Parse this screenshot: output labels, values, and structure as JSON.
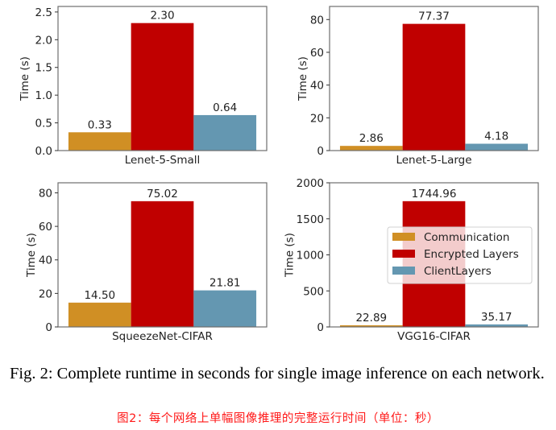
{
  "chart_data": [
    {
      "type": "bar",
      "title": "",
      "xlabel": "Lenet-5-Small",
      "ylabel": "Time (s)",
      "ylim": [
        0,
        2.6
      ],
      "yticks": [
        "0.0",
        "0.5",
        "1.0",
        "1.5",
        "2.0",
        "2.5"
      ],
      "ytick_values": [
        0,
        0.5,
        1.0,
        1.5,
        2.0,
        2.5
      ],
      "series": [
        {
          "name": "Communication",
          "value": 0.33,
          "label": "0.33"
        },
        {
          "name": "Encrypted Layers",
          "value": 2.3,
          "label": "2.30"
        },
        {
          "name": "ClientLayers",
          "value": 0.64,
          "label": "0.64"
        }
      ],
      "legend": false
    },
    {
      "type": "bar",
      "title": "",
      "xlabel": "Lenet-5-Large",
      "ylabel": "Time (s)",
      "ylim": [
        0,
        88
      ],
      "yticks": [
        "0",
        "20",
        "40",
        "60",
        "80"
      ],
      "ytick_values": [
        0,
        20,
        40,
        60,
        80
      ],
      "series": [
        {
          "name": "Communication",
          "value": 2.86,
          "label": "2.86"
        },
        {
          "name": "Encrypted Layers",
          "value": 77.37,
          "label": "77.37"
        },
        {
          "name": "ClientLayers",
          "value": 4.18,
          "label": "4.18"
        }
      ],
      "legend": false
    },
    {
      "type": "bar",
      "title": "",
      "xlabel": "SqueezeNet-CIFAR",
      "ylabel": "Time (s)",
      "ylim": [
        0,
        86
      ],
      "yticks": [
        "0",
        "20",
        "40",
        "60",
        "80"
      ],
      "ytick_values": [
        0,
        20,
        40,
        60,
        80
      ],
      "series": [
        {
          "name": "Communication",
          "value": 14.5,
          "label": "14.50"
        },
        {
          "name": "Encrypted Layers",
          "value": 75.02,
          "label": "75.02"
        },
        {
          "name": "ClientLayers",
          "value": 21.81,
          "label": "21.81"
        }
      ],
      "legend": false
    },
    {
      "type": "bar",
      "title": "",
      "xlabel": "VGG16-CIFAR",
      "ylabel": "Time (s)",
      "ylim": [
        0,
        2000
      ],
      "yticks": [
        "0",
        "500",
        "1000",
        "1500",
        "2000"
      ],
      "ytick_values": [
        0,
        500,
        1000,
        1500,
        2000
      ],
      "series": [
        {
          "name": "Communication",
          "value": 22.89,
          "label": "22.89"
        },
        {
          "name": "Encrypted Layers",
          "value": 1744.96,
          "label": "1744.96"
        },
        {
          "name": "ClientLayers",
          "value": 35.17,
          "label": "35.17"
        }
      ],
      "legend": "center-right"
    }
  ],
  "legend": {
    "entries": [
      "Communication",
      "Encrypted Layers",
      "ClientLayers"
    ]
  },
  "colors": {
    "Communication": "#d08f24",
    "Encrypted Layers": "#c00000",
    "ClientLayers": "#6497b1"
  },
  "caption": {
    "text": "Fig. 2: Complete runtime in seconds for single image inference on each network.",
    "translation": "图2：每个网络上单幅图像推理的完整运行时间（单位：秒）"
  }
}
